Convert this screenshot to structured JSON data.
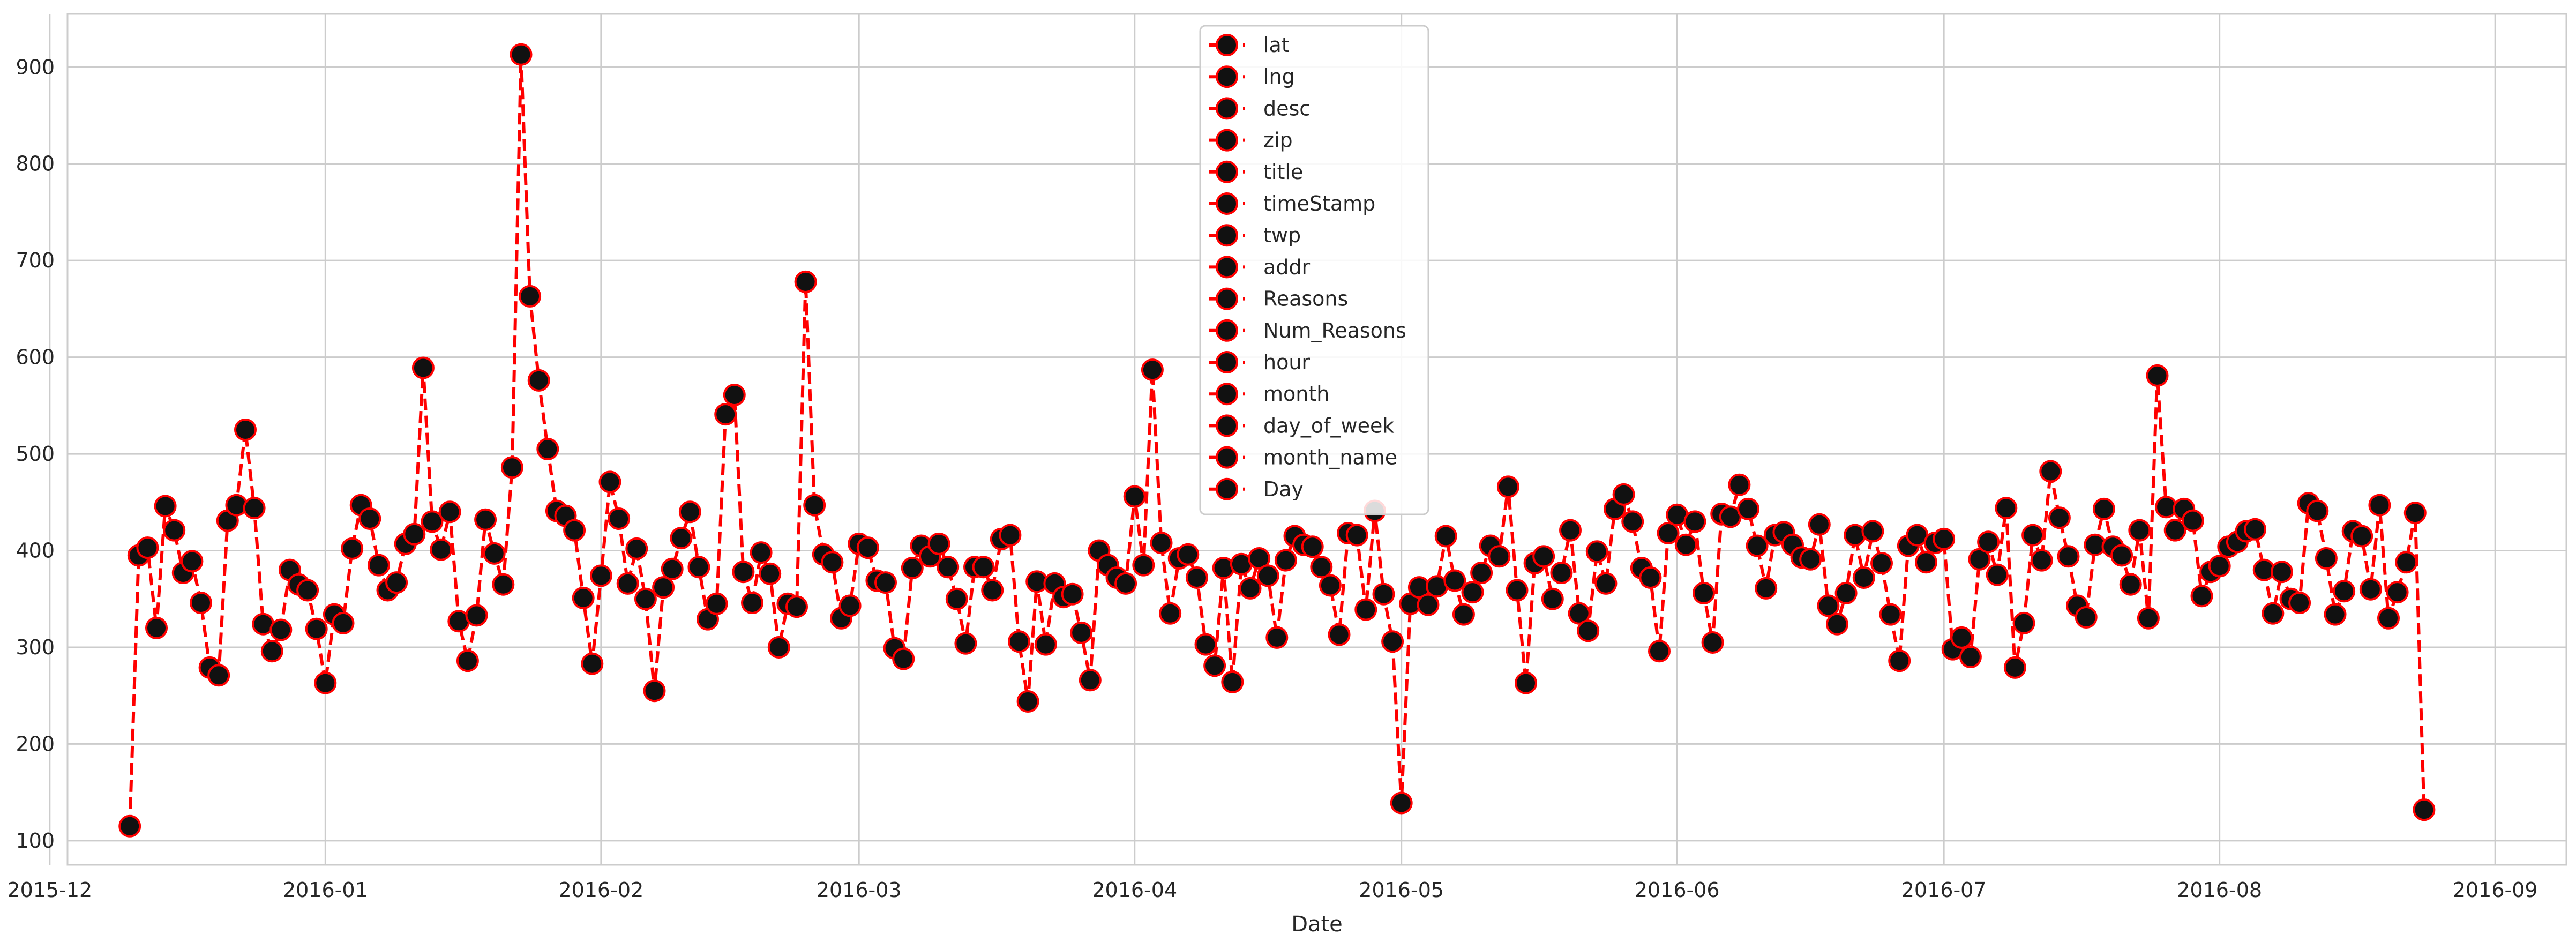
{
  "chart_data": {
    "type": "line",
    "xlabel": "Date",
    "ylabel": "",
    "ylim": [
      75,
      955
    ],
    "xlim": [
      "2015-12-03",
      "2016-09-09"
    ],
    "x_ticks": [
      {
        "date": "2015-12-01",
        "label": "2015-12"
      },
      {
        "date": "2016-01-01",
        "label": "2016-01"
      },
      {
        "date": "2016-02-01",
        "label": "2016-02"
      },
      {
        "date": "2016-03-01",
        "label": "2016-03"
      },
      {
        "date": "2016-04-01",
        "label": "2016-04"
      },
      {
        "date": "2016-05-01",
        "label": "2016-05"
      },
      {
        "date": "2016-06-01",
        "label": "2016-06"
      },
      {
        "date": "2016-07-01",
        "label": "2016-07"
      },
      {
        "date": "2016-08-01",
        "label": "2016-08"
      },
      {
        "date": "2016-09-01",
        "label": "2016-09"
      }
    ],
    "y_ticks": [
      100,
      200,
      300,
      400,
      500,
      600,
      700,
      800,
      900
    ],
    "grid": true,
    "legend_position": "top-center",
    "line_color": "#ff0000",
    "marker_fill": "#111111",
    "marker_edge": "#ff0000",
    "line_style": "dashed",
    "legend": [
      "lat",
      "lng",
      "desc",
      "zip",
      "title",
      "timeStamp",
      "twp",
      "addr",
      "Reasons",
      "Num_Reasons",
      "hour",
      "month",
      "day_of_week",
      "month_name",
      "Day"
    ],
    "x_start": "2015-12-10",
    "values": [
      115,
      395,
      403,
      320,
      446,
      421,
      377,
      389,
      346,
      279,
      271,
      431,
      447,
      525,
      444,
      324,
      296,
      318,
      380,
      365,
      359,
      319,
      263,
      334,
      325,
      402,
      447,
      433,
      385,
      359,
      367,
      407,
      417,
      589,
      430,
      401,
      440,
      327,
      286,
      333,
      432,
      397,
      365,
      486,
      913,
      663,
      576,
      505,
      441,
      436,
      421,
      351,
      283,
      374,
      471,
      433,
      366,
      402,
      350,
      255,
      362,
      381,
      413,
      440,
      383,
      329,
      345,
      541,
      561,
      378,
      346,
      398,
      376,
      300,
      345,
      342,
      678,
      447,
      396,
      388,
      330,
      343,
      407,
      403,
      369,
      367,
      299,
      288,
      382,
      405,
      394,
      407,
      383,
      350,
      304,
      383,
      383,
      359,
      412,
      416,
      306,
      244,
      368,
      303,
      366,
      352,
      355,
      315,
      266,
      400,
      385,
      372,
      366,
      456,
      385,
      587,
      408,
      335,
      392,
      396,
      372,
      303,
      281,
      382,
      264,
      386,
      361,
      392,
      374,
      310,
      390,
      415,
      406,
      404,
      383,
      364,
      313,
      418,
      416,
      339,
      441,
      355,
      306,
      139,
      345,
      362,
      344,
      363,
      415,
      369,
      334,
      357,
      377,
      405,
      394,
      466,
      359,
      263,
      387,
      394,
      350,
      377,
      421,
      335,
      317,
      399,
      366,
      443,
      458,
      430,
      382,
      372,
      296,
      418,
      437,
      406,
      430,
      356,
      305,
      438,
      435,
      468,
      443,
      405,
      361,
      416,
      419,
      406,
      393,
      391,
      427,
      343,
      324,
      356,
      416,
      372,
      420,
      387,
      334,
      286,
      405,
      416,
      388,
      408,
      412,
      298,
      310,
      290,
      391,
      409,
      375,
      444,
      279,
      325,
      416,
      390,
      482,
      434,
      394,
      343,
      331,
      406,
      443,
      404,
      395,
      365,
      421,
      330,
      581,
      445,
      421,
      443,
      431,
      353,
      378,
      384,
      404,
      409,
      420,
      422,
      380,
      335,
      378,
      350,
      346,
      449,
      441,
      392,
      334,
      358,
      420,
      415,
      360,
      447,
      330,
      357,
      388,
      439,
      132
    ]
  }
}
